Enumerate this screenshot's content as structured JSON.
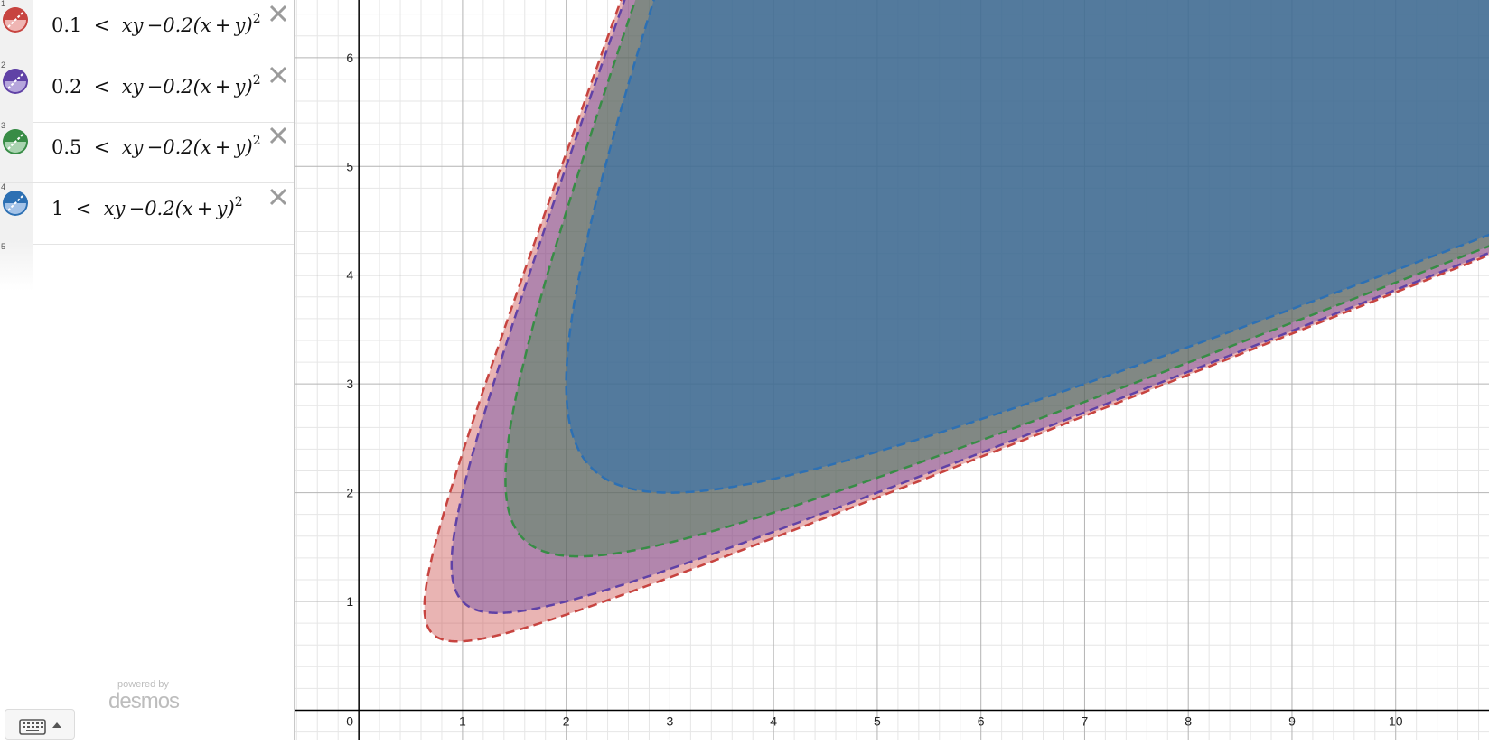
{
  "expressions": [
    {
      "number": "1",
      "lhs": "0.1",
      "rel": "<",
      "rhs": "xy −0.2(x + y)",
      "exp": "2",
      "c": 0.1,
      "color": "#c74440",
      "light": "#efb5b3",
      "fillOpacity": 0.4
    },
    {
      "number": "2",
      "lhs": "0.2",
      "rel": "<",
      "rhs": "xy −0.2(x + y)",
      "exp": "2",
      "c": 0.2,
      "color": "#6042a6",
      "light": "#b6a6dc",
      "fillOpacity": 0.4
    },
    {
      "number": "3",
      "lhs": "0.5",
      "rel": "<",
      "rhs": "xy −0.2(x + y)",
      "exp": "2",
      "c": 0.5,
      "color": "#388c46",
      "light": "#a9d3b0",
      "fillOpacity": 0.4
    },
    {
      "number": "4",
      "lhs": "1",
      "rel": "<",
      "rhs": "xy −0.2(x + y)",
      "exp": "2",
      "c": 1,
      "color": "#2d70b3",
      "light": "#a4c3e8",
      "fillOpacity": 0.55
    }
  ],
  "empty_expression_number": "5",
  "branding": {
    "powered_by": "powered by",
    "logo": "desmos"
  },
  "icons": {
    "delete": "close-icon",
    "keyboard": "keyboard-icon",
    "keyboard_toggle": "caret-up-icon"
  },
  "graph": {
    "x_range": [
      -0.62,
      10.9
    ],
    "y_range": [
      -0.27,
      6.53
    ],
    "x_ticks": [
      "0",
      "1",
      "2",
      "3",
      "4",
      "5",
      "6",
      "7",
      "8",
      "9",
      "10"
    ],
    "y_ticks": [
      "1",
      "2",
      "3",
      "4",
      "5",
      "6"
    ]
  }
}
